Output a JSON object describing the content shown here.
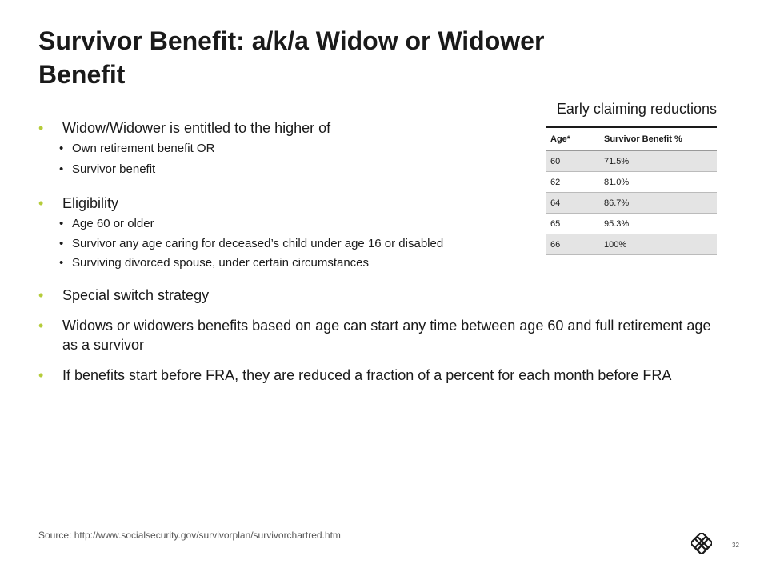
{
  "slide": {
    "title": "Survivor Benefit: a/k/a Widow or Widower Benefit",
    "page_number": "32",
    "source": "Source: http://www.socialsecurity.gov/survivorplan/survivorchartred.htm"
  },
  "table": {
    "caption": "Early claiming reductions",
    "headers": [
      "Age*",
      "Survivor Benefit %"
    ],
    "rows": [
      [
        "60",
        "71.5%"
      ],
      [
        "62",
        "81.0%"
      ],
      [
        "64",
        "86.7%"
      ],
      [
        "65",
        "95.3%"
      ],
      [
        "66",
        "100%"
      ]
    ]
  },
  "bullets": [
    {
      "text": "Widow/Widower is entitled to the higher of",
      "sub": [
        "Own retirement benefit OR",
        "Survivor benefit"
      ]
    },
    {
      "text": "Eligibility",
      "sub": [
        "Age 60 or older",
        "Survivor any age caring for deceased’s child under age 16 or disabled",
        "Surviving divorced spouse, under certain circumstances"
      ]
    },
    {
      "text": "Special switch strategy",
      "sub": []
    },
    {
      "text": "Widows or widowers benefits based on age can start any time between age 60 and full retirement age as a survivor",
      "sub": []
    },
    {
      "text": "If benefits start before FRA, they are reduced a fraction of a percent for each month before FRA",
      "sub": []
    }
  ],
  "colors": {
    "bullet_accent": "#b5cc3a",
    "table_shade": "#e4e4e4"
  },
  "icons": {
    "logo": "compass-logo-icon"
  }
}
